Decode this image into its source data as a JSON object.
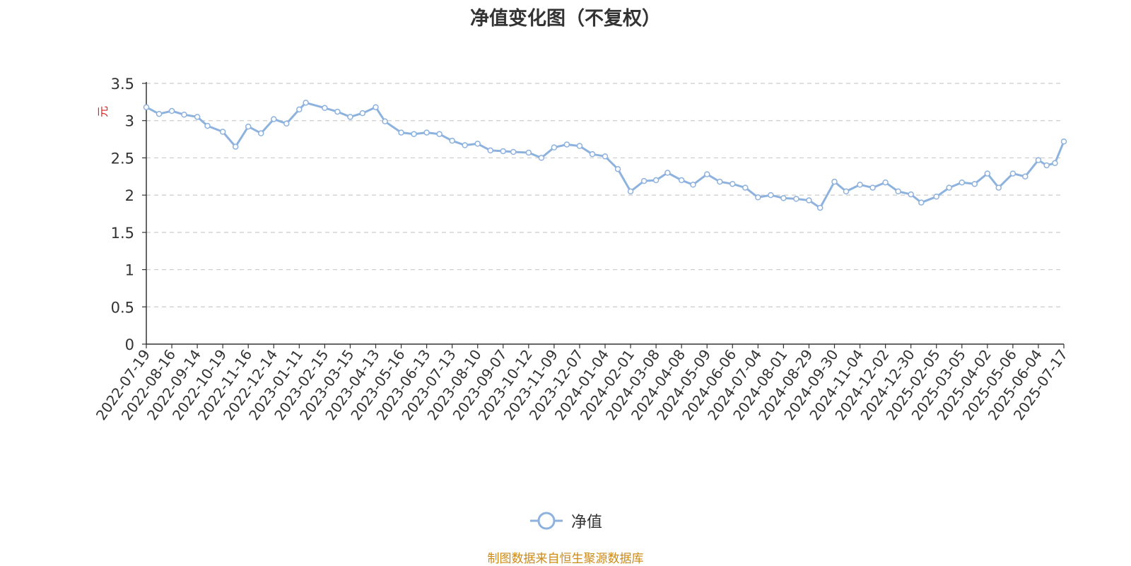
{
  "chart_data": {
    "type": "line",
    "title": "净值变化图（不复权）",
    "ylabel": "元",
    "ylim": [
      0,
      3.5
    ],
    "yticks": [
      0,
      0.5,
      1,
      1.5,
      2,
      2.5,
      3,
      3.5
    ],
    "grid": true,
    "legend_position": "bottom-center",
    "x_tick_labels": [
      "2022-07-19",
      "2022-08-16",
      "2022-09-14",
      "2022-10-19",
      "2022-11-16",
      "2022-12-14",
      "2023-01-11",
      "2023-02-15",
      "2023-03-15",
      "2023-04-13",
      "2023-05-16",
      "2023-06-13",
      "2023-07-13",
      "2023-08-10",
      "2023-09-07",
      "2023-10-12",
      "2023-11-09",
      "2023-12-07",
      "2024-01-04",
      "2024-02-01",
      "2024-03-08",
      "2024-04-08",
      "2024-05-09",
      "2024-06-06",
      "2024-07-04",
      "2024-08-01",
      "2024-08-29",
      "2024-09-30",
      "2024-11-04",
      "2024-12-02",
      "2024-12-30",
      "2025-02-05",
      "2025-03-05",
      "2025-04-02",
      "2025-05-06",
      "2025-06-04",
      "2025-07-17"
    ],
    "series": [
      {
        "name": "净值",
        "color": "#8eb2de",
        "x": [
          "2022-07-19",
          "2022-08-02",
          "2022-08-16",
          "2022-08-30",
          "2022-09-14",
          "2022-09-28",
          "2022-10-19",
          "2022-11-02",
          "2022-11-16",
          "2022-11-30",
          "2022-12-14",
          "2022-12-28",
          "2023-01-11",
          "2023-01-20",
          "2023-02-15",
          "2023-03-01",
          "2023-03-15",
          "2023-03-29",
          "2023-04-13",
          "2023-04-25",
          "2023-05-16",
          "2023-05-30",
          "2023-06-13",
          "2023-06-28",
          "2023-07-13",
          "2023-07-27",
          "2023-08-10",
          "2023-08-24",
          "2023-09-07",
          "2023-09-21",
          "2023-10-12",
          "2023-10-26",
          "2023-11-09",
          "2023-11-23",
          "2023-12-07",
          "2023-12-21",
          "2024-01-04",
          "2024-01-18",
          "2024-02-01",
          "2024-02-20",
          "2024-03-08",
          "2024-03-22",
          "2024-04-08",
          "2024-04-22",
          "2024-05-09",
          "2024-05-23",
          "2024-06-06",
          "2024-06-20",
          "2024-07-04",
          "2024-07-18",
          "2024-08-01",
          "2024-08-15",
          "2024-08-29",
          "2024-09-12",
          "2024-09-30",
          "2024-10-16",
          "2024-11-04",
          "2024-11-18",
          "2024-12-02",
          "2024-12-16",
          "2024-12-30",
          "2025-01-14",
          "2025-02-05",
          "2025-02-19",
          "2025-03-05",
          "2025-03-19",
          "2025-04-02",
          "2025-04-17",
          "2025-05-06",
          "2025-05-20",
          "2025-06-04",
          "2025-06-18",
          "2025-07-02",
          "2025-07-17"
        ],
        "values": [
          3.18,
          3.09,
          3.13,
          3.08,
          3.05,
          2.93,
          2.85,
          2.65,
          2.92,
          2.83,
          3.02,
          2.96,
          3.15,
          3.24,
          3.17,
          3.12,
          3.05,
          3.1,
          3.18,
          2.99,
          2.84,
          2.82,
          2.84,
          2.82,
          2.73,
          2.67,
          2.69,
          2.6,
          2.59,
          2.58,
          2.57,
          2.5,
          2.64,
          2.68,
          2.66,
          2.55,
          2.52,
          2.35,
          2.05,
          2.19,
          2.2,
          2.3,
          2.2,
          2.14,
          2.28,
          2.18,
          2.15,
          2.1,
          1.97,
          2.0,
          1.96,
          1.95,
          1.93,
          1.83,
          2.18,
          2.05,
          2.14,
          2.1,
          2.17,
          2.05,
          2.01,
          1.9,
          1.98,
          2.1,
          2.17,
          2.15,
          2.29,
          2.1,
          2.29,
          2.25,
          2.47,
          2.4,
          2.43,
          2.72
        ]
      }
    ],
    "source_note": "制图数据来自恒生聚源数据库"
  }
}
